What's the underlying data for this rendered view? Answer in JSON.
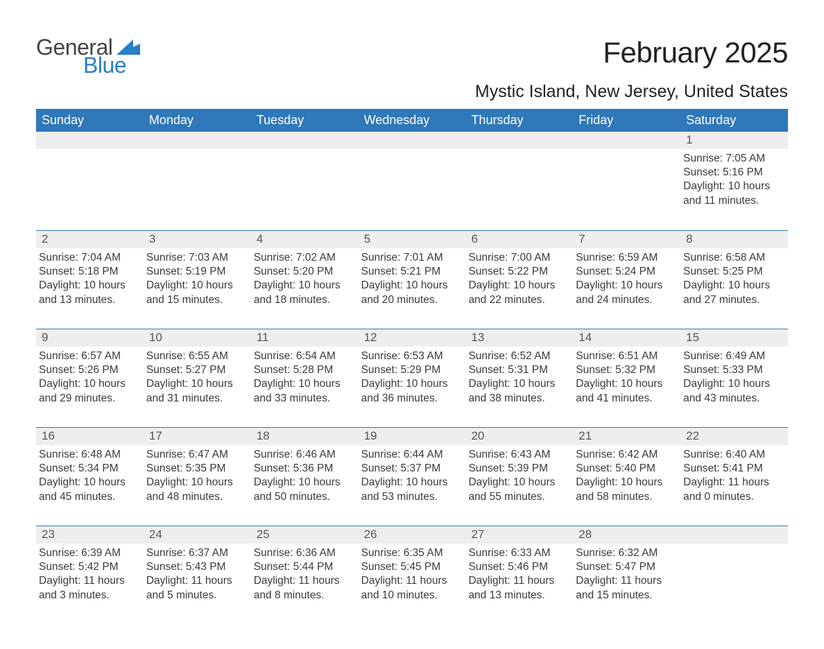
{
  "logo": {
    "text_general": "General",
    "text_blue": "Blue",
    "brand_color": "#2a7fc7"
  },
  "header": {
    "month_title": "February 2025",
    "location": "Mystic Island, New Jersey, United States"
  },
  "styling": {
    "header_bg": "#2f78b9",
    "header_text": "#ffffff",
    "daynum_bg": "#eeeeee",
    "body_text": "#3a3a3a",
    "week_border": "#2f78b9",
    "page_bg": "#ffffff",
    "title_fontsize": 42,
    "location_fontsize": 25,
    "dayname_fontsize": 18,
    "body_fontsize": 15.5
  },
  "daynames": [
    "Sunday",
    "Monday",
    "Tuesday",
    "Wednesday",
    "Thursday",
    "Friday",
    "Saturday"
  ],
  "weeks": [
    [
      {
        "num": "",
        "lines": []
      },
      {
        "num": "",
        "lines": []
      },
      {
        "num": "",
        "lines": []
      },
      {
        "num": "",
        "lines": []
      },
      {
        "num": "",
        "lines": []
      },
      {
        "num": "",
        "lines": []
      },
      {
        "num": "1",
        "lines": [
          "Sunrise: 7:05 AM",
          "Sunset: 5:16 PM",
          "Daylight: 10 hours and 11 minutes."
        ]
      }
    ],
    [
      {
        "num": "2",
        "lines": [
          "Sunrise: 7:04 AM",
          "Sunset: 5:18 PM",
          "Daylight: 10 hours and 13 minutes."
        ]
      },
      {
        "num": "3",
        "lines": [
          "Sunrise: 7:03 AM",
          "Sunset: 5:19 PM",
          "Daylight: 10 hours and 15 minutes."
        ]
      },
      {
        "num": "4",
        "lines": [
          "Sunrise: 7:02 AM",
          "Sunset: 5:20 PM",
          "Daylight: 10 hours and 18 minutes."
        ]
      },
      {
        "num": "5",
        "lines": [
          "Sunrise: 7:01 AM",
          "Sunset: 5:21 PM",
          "Daylight: 10 hours and 20 minutes."
        ]
      },
      {
        "num": "6",
        "lines": [
          "Sunrise: 7:00 AM",
          "Sunset: 5:22 PM",
          "Daylight: 10 hours and 22 minutes."
        ]
      },
      {
        "num": "7",
        "lines": [
          "Sunrise: 6:59 AM",
          "Sunset: 5:24 PM",
          "Daylight: 10 hours and 24 minutes."
        ]
      },
      {
        "num": "8",
        "lines": [
          "Sunrise: 6:58 AM",
          "Sunset: 5:25 PM",
          "Daylight: 10 hours and 27 minutes."
        ]
      }
    ],
    [
      {
        "num": "9",
        "lines": [
          "Sunrise: 6:57 AM",
          "Sunset: 5:26 PM",
          "Daylight: 10 hours and 29 minutes."
        ]
      },
      {
        "num": "10",
        "lines": [
          "Sunrise: 6:55 AM",
          "Sunset: 5:27 PM",
          "Daylight: 10 hours and 31 minutes."
        ]
      },
      {
        "num": "11",
        "lines": [
          "Sunrise: 6:54 AM",
          "Sunset: 5:28 PM",
          "Daylight: 10 hours and 33 minutes."
        ]
      },
      {
        "num": "12",
        "lines": [
          "Sunrise: 6:53 AM",
          "Sunset: 5:29 PM",
          "Daylight: 10 hours and 36 minutes."
        ]
      },
      {
        "num": "13",
        "lines": [
          "Sunrise: 6:52 AM",
          "Sunset: 5:31 PM",
          "Daylight: 10 hours and 38 minutes."
        ]
      },
      {
        "num": "14",
        "lines": [
          "Sunrise: 6:51 AM",
          "Sunset: 5:32 PM",
          "Daylight: 10 hours and 41 minutes."
        ]
      },
      {
        "num": "15",
        "lines": [
          "Sunrise: 6:49 AM",
          "Sunset: 5:33 PM",
          "Daylight: 10 hours and 43 minutes."
        ]
      }
    ],
    [
      {
        "num": "16",
        "lines": [
          "Sunrise: 6:48 AM",
          "Sunset: 5:34 PM",
          "Daylight: 10 hours and 45 minutes."
        ]
      },
      {
        "num": "17",
        "lines": [
          "Sunrise: 6:47 AM",
          "Sunset: 5:35 PM",
          "Daylight: 10 hours and 48 minutes."
        ]
      },
      {
        "num": "18",
        "lines": [
          "Sunrise: 6:46 AM",
          "Sunset: 5:36 PM",
          "Daylight: 10 hours and 50 minutes."
        ]
      },
      {
        "num": "19",
        "lines": [
          "Sunrise: 6:44 AM",
          "Sunset: 5:37 PM",
          "Daylight: 10 hours and 53 minutes."
        ]
      },
      {
        "num": "20",
        "lines": [
          "Sunrise: 6:43 AM",
          "Sunset: 5:39 PM",
          "Daylight: 10 hours and 55 minutes."
        ]
      },
      {
        "num": "21",
        "lines": [
          "Sunrise: 6:42 AM",
          "Sunset: 5:40 PM",
          "Daylight: 10 hours and 58 minutes."
        ]
      },
      {
        "num": "22",
        "lines": [
          "Sunrise: 6:40 AM",
          "Sunset: 5:41 PM",
          "Daylight: 11 hours and 0 minutes."
        ]
      }
    ],
    [
      {
        "num": "23",
        "lines": [
          "Sunrise: 6:39 AM",
          "Sunset: 5:42 PM",
          "Daylight: 11 hours and 3 minutes."
        ]
      },
      {
        "num": "24",
        "lines": [
          "Sunrise: 6:37 AM",
          "Sunset: 5:43 PM",
          "Daylight: 11 hours and 5 minutes."
        ]
      },
      {
        "num": "25",
        "lines": [
          "Sunrise: 6:36 AM",
          "Sunset: 5:44 PM",
          "Daylight: 11 hours and 8 minutes."
        ]
      },
      {
        "num": "26",
        "lines": [
          "Sunrise: 6:35 AM",
          "Sunset: 5:45 PM",
          "Daylight: 11 hours and 10 minutes."
        ]
      },
      {
        "num": "27",
        "lines": [
          "Sunrise: 6:33 AM",
          "Sunset: 5:46 PM",
          "Daylight: 11 hours and 13 minutes."
        ]
      },
      {
        "num": "28",
        "lines": [
          "Sunrise: 6:32 AM",
          "Sunset: 5:47 PM",
          "Daylight: 11 hours and 15 minutes."
        ]
      },
      {
        "num": "",
        "lines": []
      }
    ]
  ]
}
